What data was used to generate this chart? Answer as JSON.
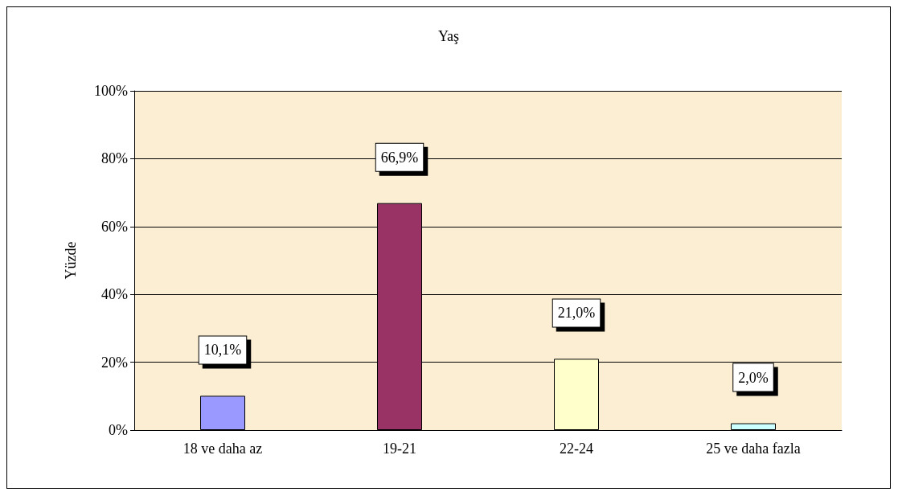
{
  "chart_data": {
    "type": "bar",
    "title": "Yaş",
    "ylabel": "Yüzde",
    "categories": [
      "18 ve daha az",
      "19-21",
      "22-24",
      "25 ve daha fazla"
    ],
    "values": [
      10.1,
      66.9,
      21.0,
      2.0
    ],
    "colors": [
      "#9999ff",
      "#993366",
      "#ffffcc",
      "#ccffff"
    ],
    "value_labels": [
      "10,1%",
      "66,9%",
      "21,0%",
      "2,0%"
    ],
    "ylim": [
      0,
      100
    ],
    "yticks": [
      {
        "value": 0,
        "label": "0%"
      },
      {
        "value": 20,
        "label": "20%"
      },
      {
        "value": 40,
        "label": "40%"
      },
      {
        "value": 60,
        "label": "60%"
      },
      {
        "value": 80,
        "label": "80%"
      },
      {
        "value": 100,
        "label": "100%"
      }
    ],
    "grid": "y"
  }
}
